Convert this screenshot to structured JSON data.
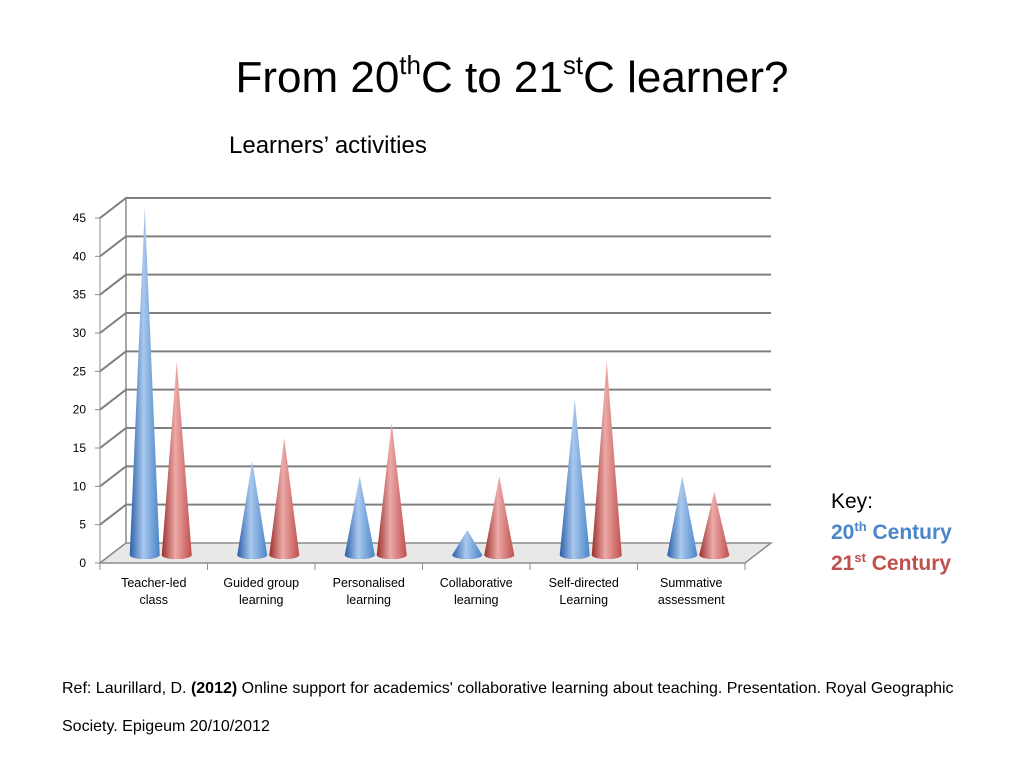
{
  "title": {
    "part1": "From 20",
    "sup1": "th",
    "part2": "C to 21",
    "sup2": "st",
    "part3": "C learner?"
  },
  "colors": {
    "series_20th": "#4a86c8",
    "series_21st": "#c0504d",
    "gridline": "#7f7f7f"
  },
  "chart_data": {
    "type": "bar",
    "style": "3d-cone",
    "title": "Learners’ activities",
    "xlabel": "",
    "ylabel": "",
    "ylim": [
      0,
      45
    ],
    "yticks": [
      0,
      5,
      10,
      15,
      20,
      25,
      30,
      35,
      40,
      45
    ],
    "grid": true,
    "categories": [
      [
        "Teacher-led",
        "class"
      ],
      [
        "Guided group",
        "learning"
      ],
      [
        "Personalised",
        "learning"
      ],
      [
        "Collaborative",
        "learning"
      ],
      [
        "Self-directed",
        "Learning"
      ],
      [
        "Summative",
        "assessment"
      ]
    ],
    "series": [
      {
        "name": "20th Century",
        "values": [
          45,
          12,
          10,
          3,
          20,
          10
        ]
      },
      {
        "name": "21st Century",
        "values": [
          25,
          15,
          17,
          10,
          25,
          8
        ]
      }
    ],
    "legend_position": "right"
  },
  "key": {
    "label": "Key:",
    "series1_num": "20",
    "series1_sup": "th",
    "series1_word": "Century",
    "series2_num": "21",
    "series2_sup": "st",
    "series2_word": "Century"
  },
  "reference": {
    "prefix": "Ref: Laurillard, D. ",
    "year": "(2012)",
    "text": " Online support for academics' collaborative learning about teaching. Presentation. Royal Geographic Society. Epigeum 20/10/2012"
  }
}
